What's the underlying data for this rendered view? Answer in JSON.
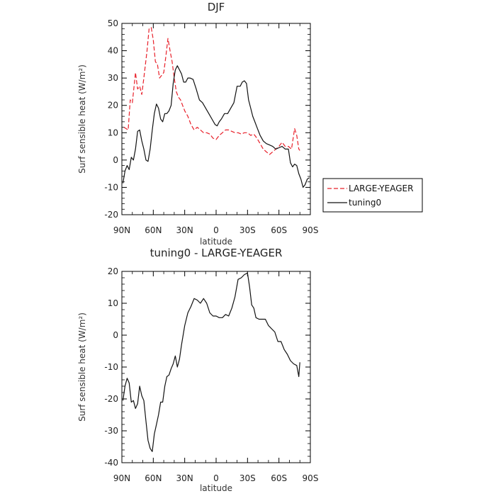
{
  "chart_data": [
    {
      "type": "line",
      "title": "DJF",
      "xlabel": "latitude",
      "ylabel": "Surf sensible heat (W/m²)",
      "xlim": [
        -90,
        90
      ],
      "ylim": [
        -20,
        50
      ],
      "xticks": [
        -90,
        -60,
        -30,
        0,
        30,
        60,
        90
      ],
      "xtick_labels": [
        "90N",
        "60N",
        "30N",
        "0",
        "30S",
        "60S",
        "90S"
      ],
      "yticks": [
        -20,
        -10,
        0,
        10,
        20,
        30,
        40,
        50
      ],
      "legend": {
        "position": "right of plot"
      },
      "series": [
        {
          "name": "LARGE-YEAGER",
          "color": "#e8202a",
          "style": "dashed",
          "x": [
            -88,
            -84,
            -82,
            -80,
            -77,
            -75,
            -73,
            -71,
            -69,
            -66,
            -64,
            -62,
            -60,
            -58,
            -56,
            -54,
            -52,
            -50,
            -48,
            -46,
            -44,
            -42,
            -40,
            -38,
            -36,
            -34,
            -32,
            -30,
            -27,
            -24,
            -21,
            -18,
            -15,
            -12,
            -9,
            -6,
            -3,
            0,
            3,
            6,
            9,
            12,
            15,
            18,
            21,
            24,
            27,
            30,
            33,
            36,
            39,
            42,
            45,
            48,
            51,
            54,
            57,
            60,
            63,
            66,
            69,
            72,
            75,
            77,
            79,
            80
          ],
          "y": [
            12,
            11,
            22,
            21,
            32,
            26,
            27,
            24,
            30,
            40,
            48,
            48.5,
            44,
            36,
            35,
            30,
            31,
            32,
            38,
            44.5,
            40,
            36,
            30,
            25,
            23,
            22,
            20,
            18,
            16,
            13,
            11,
            12,
            11,
            10,
            10,
            9.5,
            8,
            7.5,
            9,
            10,
            11,
            11,
            10.5,
            10,
            10,
            9.5,
            10,
            10,
            9,
            9.5,
            8,
            6,
            4,
            3,
            2,
            3,
            4,
            5,
            6.5,
            5,
            5,
            4,
            11.5,
            9,
            4,
            3.5
          ]
        },
        {
          "name": "tuning0",
          "color": "#111111",
          "style": "solid",
          "x": [
            -89,
            -87,
            -85,
            -83,
            -81,
            -79,
            -77,
            -75,
            -73,
            -71,
            -69,
            -67,
            -65,
            -63,
            -61,
            -59,
            -57,
            -55,
            -53,
            -51,
            -49,
            -47,
            -45,
            -43,
            -41,
            -39,
            -37,
            -35,
            -33,
            -31,
            -29,
            -27,
            -25,
            -22,
            -19,
            -16,
            -13,
            -10,
            -7,
            -4,
            -1,
            1,
            3,
            5,
            8,
            11,
            14,
            17,
            20,
            23,
            25,
            27,
            29,
            31,
            33,
            35,
            37,
            39,
            42,
            45,
            48,
            51,
            54,
            57,
            60,
            63,
            66,
            69,
            71,
            73,
            75,
            77,
            79,
            81,
            83,
            85,
            87,
            89
          ],
          "y": [
            -8.5,
            -4,
            -2,
            -3.5,
            1,
            0,
            4,
            10.5,
            11,
            7,
            4,
            0,
            -0.5,
            4,
            11,
            17,
            20.5,
            19,
            15,
            14,
            17,
            17,
            18,
            20,
            28,
            33,
            34.5,
            33,
            31.5,
            28.5,
            28.5,
            30,
            30,
            29.5,
            26,
            22,
            21,
            19,
            17,
            15,
            13,
            12.5,
            14,
            15,
            17,
            17,
            19,
            21,
            27,
            27,
            28.5,
            29,
            28,
            22,
            19,
            16,
            14,
            12,
            9,
            7,
            6,
            5.5,
            5,
            4,
            4.5,
            5,
            4,
            4,
            -1,
            -2.5,
            -1.5,
            -2,
            -5,
            -7,
            -10,
            -9,
            -7,
            -6.5
          ]
        }
      ]
    },
    {
      "type": "line",
      "title": "tuning0 - LARGE-YEAGER",
      "xlabel": "latitude",
      "ylabel": "Surf sensible heat (W/m²)",
      "xlim": [
        -90,
        90
      ],
      "ylim": [
        -40,
        20
      ],
      "xticks": [
        -90,
        -60,
        -30,
        0,
        30,
        60,
        90
      ],
      "xtick_labels": [
        "90N",
        "60N",
        "30N",
        "0",
        "30S",
        "60S",
        "90S"
      ],
      "yticks": [
        -40,
        -30,
        -20,
        -10,
        0,
        10,
        20
      ],
      "series": [
        {
          "color": "#111111",
          "style": "solid",
          "x": [
            -89,
            -87,
            -85,
            -83,
            -81,
            -79,
            -77,
            -75,
            -73,
            -71,
            -69,
            -67,
            -65,
            -63,
            -61,
            -59,
            -57,
            -55,
            -53,
            -51,
            -49,
            -47,
            -45,
            -43,
            -41,
            -39,
            -37,
            -35,
            -33,
            -30,
            -27,
            -24,
            -21,
            -18,
            -15,
            -12,
            -9,
            -6,
            -3,
            0,
            3,
            6,
            9,
            12,
            15,
            18,
            21,
            24,
            27,
            30,
            32,
            34,
            36,
            38,
            41,
            44,
            47,
            50,
            53,
            56,
            59,
            62,
            65,
            68,
            71,
            74,
            77,
            79,
            80
          ],
          "y": [
            -20.5,
            -16,
            -13.5,
            -15,
            -21,
            -20.5,
            -23,
            -21.5,
            -16,
            -19,
            -20.5,
            -27,
            -33,
            -35.5,
            -36.5,
            -31,
            -28,
            -25,
            -21,
            -21,
            -16,
            -13,
            -12.5,
            -10.5,
            -9,
            -6.5,
            -10,
            -7.5,
            -3,
            3,
            7,
            9,
            11.5,
            11,
            10,
            11.5,
            10,
            7,
            6,
            6,
            5.5,
            5.5,
            6.5,
            6,
            8.5,
            12,
            17.5,
            18,
            19,
            19.5,
            15,
            9.5,
            8.5,
            5.5,
            5,
            5,
            5,
            3,
            2,
            1,
            -2,
            -2,
            -4.5,
            -6,
            -8,
            -9,
            -9.5,
            -13,
            -8.5
          ]
        }
      ]
    }
  ]
}
